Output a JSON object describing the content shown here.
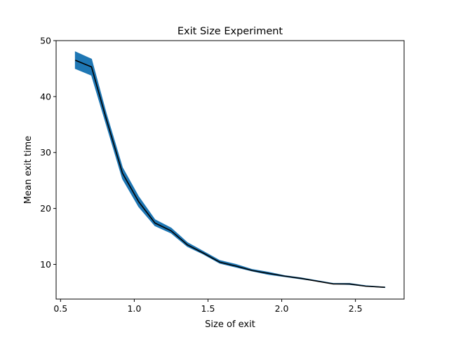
{
  "chart_data": {
    "type": "line",
    "title": "Exit Size Experiment",
    "xlabel": "Size of exit",
    "ylabel": "Mean exit time",
    "xlim": [
      0.47,
      2.83
    ],
    "ylim": [
      3.8,
      50
    ],
    "xticks": [
      0.5,
      1.0,
      1.5,
      2.0,
      2.5
    ],
    "xtick_labels": [
      "0.5",
      "1.0",
      "1.5",
      "2.0",
      "2.5"
    ],
    "yticks": [
      10,
      20,
      30,
      40,
      50
    ],
    "ytick_labels": [
      "10",
      "20",
      "30",
      "40",
      "50"
    ],
    "grid": false,
    "legend": "none",
    "colors": {
      "line": "#000000",
      "band": "#1f77b4"
    },
    "series": [
      {
        "x": [
          0.6,
          0.71,
          0.81,
          0.92,
          1.03,
          1.14,
          1.25,
          1.36,
          1.47,
          1.58,
          1.69,
          1.8,
          1.91,
          2.02,
          2.13,
          2.24,
          2.35,
          2.46,
          2.57,
          2.7
        ],
        "y": [
          46.5,
          45.3,
          36.0,
          26.3,
          21.2,
          17.4,
          16.0,
          13.5,
          12.0,
          10.4,
          9.7,
          8.9,
          8.4,
          7.9,
          7.5,
          7.0,
          6.5,
          6.5,
          6.1,
          5.9
        ],
        "lower": [
          45.0,
          43.8,
          35.0,
          25.3,
          20.3,
          16.9,
          15.6,
          13.2,
          11.8,
          10.2,
          9.5,
          8.8,
          8.2,
          7.8,
          7.4,
          7.0,
          6.5,
          6.4,
          6.1,
          5.85
        ],
        "upper": [
          48.0,
          46.7,
          37.0,
          27.3,
          22.1,
          18.0,
          16.5,
          13.9,
          12.3,
          10.7,
          10.0,
          9.1,
          8.6,
          8.0,
          7.6,
          7.1,
          6.6,
          6.6,
          6.2,
          5.95
        ]
      }
    ]
  }
}
